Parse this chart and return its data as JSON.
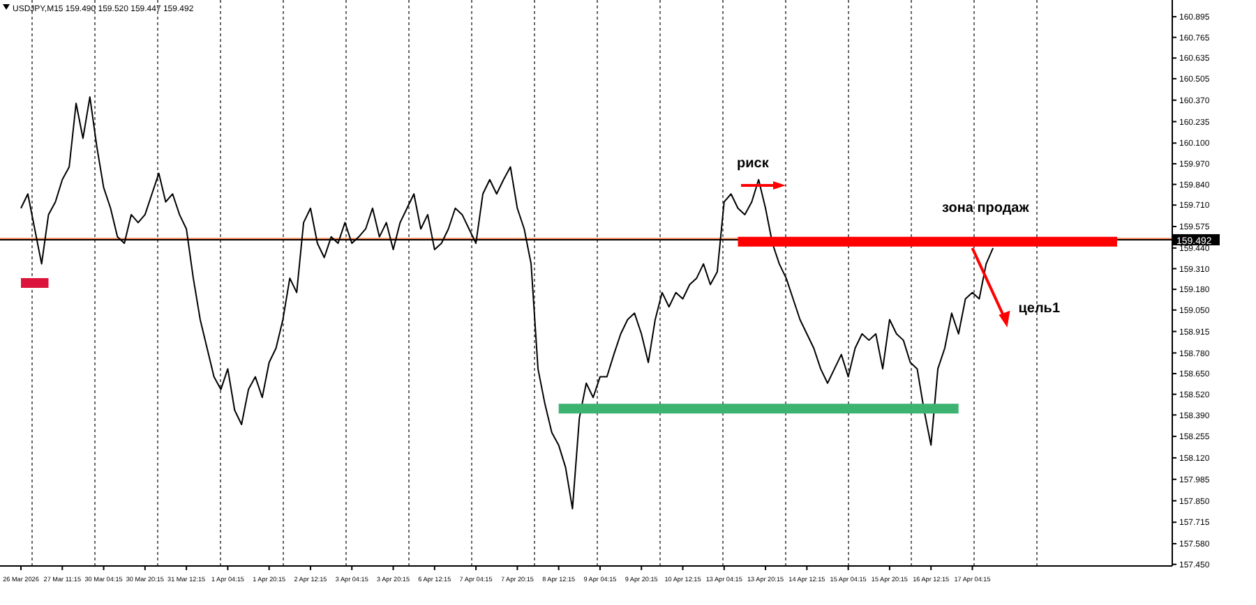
{
  "chart_data": {
    "type": "line",
    "title": "USDJPY,M15  159.490 159.520 159.447 159.492",
    "categories": [
      "26 Mar 2026",
      null,
      null,
      null,
      null,
      null,
      "27 Mar 11:15",
      null,
      null,
      null,
      null,
      null,
      "30 Mar 04:15",
      null,
      null,
      null,
      null,
      null,
      "30 Mar 20:15",
      null,
      null,
      null,
      null,
      null,
      "31 Mar 12:15",
      null,
      null,
      null,
      null,
      null,
      "1 Apr 04:15",
      null,
      null,
      null,
      null,
      null,
      "1 Apr 20:15",
      null,
      null,
      null,
      null,
      null,
      "2 Apr 12:15",
      null,
      null,
      null,
      null,
      null,
      "3 Apr 04:15",
      null,
      null,
      null,
      null,
      null,
      "3 Apr 20:15",
      null,
      null,
      null,
      null,
      null,
      "6 Apr 12:15",
      null,
      null,
      null,
      null,
      null,
      "7 Apr 04:15",
      null,
      null,
      null,
      null,
      null,
      "7 Apr 20:15",
      null,
      null,
      null,
      null,
      null,
      "8 Apr 12:15",
      null,
      null,
      null,
      null,
      null,
      "9 Apr 04:15",
      null,
      null,
      null,
      null,
      null,
      "9 Apr 20:15",
      null,
      null,
      null,
      null,
      null,
      "10 Apr 12:15",
      null,
      null,
      null,
      null,
      null,
      "13 Apr 04:15",
      null,
      null,
      null,
      null,
      null,
      "13 Apr 20:15",
      null,
      null,
      null,
      null,
      null,
      "14 Apr 12:15",
      null,
      null,
      null,
      null,
      null,
      "15 Apr 04:15",
      null,
      null,
      null,
      null,
      null,
      "15 Apr 20:15",
      null,
      null,
      null,
      null,
      null,
      "16 Apr 12:15",
      null,
      null,
      null,
      null,
      null,
      "17 Apr 04:15",
      null,
      null,
      null,
      null,
      null,
      null,
      null,
      null,
      null,
      null,
      null,
      null,
      null,
      null,
      null,
      null,
      null,
      null,
      null,
      null,
      null,
      null,
      null,
      null,
      null,
      null,
      null,
      null,
      null
    ],
    "ylim": [
      157.44,
      161.0
    ],
    "yticks": [
      160.895,
      160.765,
      160.635,
      160.505,
      {
        "value": 160.37,
        "label": "160.370"
      },
      160.235,
      {
        "value": 160.1,
        "label": "160.100"
      },
      {
        "value": 159.97,
        "label": "159.970"
      },
      {
        "value": 159.84,
        "label": "159.840"
      },
      {
        "value": 159.71,
        "label": "159.710"
      },
      159.575,
      {
        "value": 159.44,
        "label": "159.440"
      },
      {
        "value": 159.31,
        "label": "159.310"
      },
      {
        "value": 159.18,
        "label": "159.180"
      },
      {
        "value": 159.05,
        "label": "159.050"
      },
      158.915,
      {
        "value": 158.78,
        "label": "158.780"
      },
      {
        "value": 158.65,
        "label": "158.650"
      },
      {
        "value": 158.52,
        "label": "158.520"
      },
      {
        "value": 158.39,
        "label": "158.390"
      },
      158.255,
      {
        "value": 158.12,
        "label": "158.120"
      },
      157.985,
      {
        "value": 157.85,
        "label": "157.850"
      },
      157.715,
      {
        "value": 157.58,
        "label": "157.580"
      },
      {
        "value": 157.45,
        "label": "157.450"
      }
    ],
    "series": [
      {
        "color": "#000000",
        "values": [
          159.69,
          159.78,
          159.56,
          159.34,
          159.65,
          159.73,
          159.87,
          159.95,
          160.35,
          160.13,
          160.39,
          160.08,
          159.82,
          159.69,
          159.51,
          159.47,
          159.65,
          159.6,
          159.65,
          159.78,
          159.91,
          159.73,
          159.78,
          159.65,
          159.56,
          159.25,
          158.99,
          158.81,
          158.63,
          158.55,
          158.68,
          158.42,
          158.33,
          158.55,
          158.63,
          158.5,
          158.72,
          158.81,
          158.99,
          159.25,
          159.16,
          159.6,
          159.69,
          159.47,
          159.38,
          159.51,
          159.47,
          159.6,
          159.47,
          159.51,
          159.56,
          159.69,
          159.51,
          159.6,
          159.43,
          159.6,
          159.69,
          159.78,
          159.56,
          159.65,
          159.43,
          159.47,
          159.56,
          159.69,
          159.65,
          159.56,
          159.47,
          159.78,
          159.87,
          159.78,
          159.87,
          159.95,
          159.69,
          159.56,
          159.34,
          158.68,
          158.46,
          158.28,
          158.2,
          158.06,
          157.8,
          158.37,
          158.59,
          158.5,
          158.63,
          158.63,
          158.77,
          158.9,
          158.99,
          159.03,
          158.9,
          158.72,
          158.99,
          159.16,
          159.07,
          159.16,
          159.12,
          159.21,
          159.25,
          159.34,
          159.21,
          159.29,
          159.73,
          159.78,
          159.69,
          159.65,
          159.73,
          159.87,
          159.69,
          159.47,
          159.34,
          159.25,
          159.12,
          158.99,
          158.9,
          158.81,
          158.68,
          158.59,
          158.68,
          158.77,
          158.63,
          158.81,
          158.9,
          158.86,
          158.9,
          158.68,
          158.99,
          158.9,
          158.86,
          158.72,
          158.68,
          158.42,
          158.2,
          158.68,
          158.81,
          159.03,
          158.9,
          159.12,
          159.16,
          159.12,
          159.34,
          159.44,
          null,
          null,
          null,
          null,
          null,
          null,
          null,
          null,
          null,
          null,
          null,
          null,
          null,
          null,
          null,
          null,
          null,
          null,
          null,
          null,
          null,
          null,
          null,
          null,
          null,
          null
        ]
      },
      {
        "color": "#dc143c",
        "values": [
          159.22,
          159.22,
          159.22,
          159.22,
          159.22,
          null,
          null,
          null,
          null,
          null,
          null,
          null,
          null,
          null,
          null,
          null,
          null,
          null,
          null,
          null,
          null,
          null,
          null,
          null,
          null,
          null,
          null,
          null,
          null,
          null,
          null,
          null,
          null,
          null,
          null,
          null,
          null,
          null,
          null,
          null,
          null,
          null,
          null,
          null,
          null,
          null,
          null,
          null,
          null,
          null,
          null,
          null,
          null,
          null,
          null,
          null,
          null,
          null,
          null,
          null,
          null,
          null,
          null,
          null,
          null,
          null,
          null,
          null,
          null,
          null,
          null,
          null,
          null,
          null,
          null,
          null,
          null,
          null,
          null,
          null,
          null,
          null,
          null,
          null,
          null,
          null,
          null,
          null,
          null,
          null,
          null,
          null,
          null,
          null,
          null,
          null,
          null,
          null,
          null,
          null,
          null,
          null,
          null,
          null,
          null,
          null,
          null,
          null,
          null,
          null,
          null,
          null,
          null,
          null,
          null,
          null,
          null,
          null,
          null,
          null,
          null,
          null,
          null,
          null,
          null,
          null,
          null,
          null,
          null,
          null,
          null,
          null,
          null,
          null,
          null,
          null,
          null,
          null,
          null,
          null,
          null,
          null,
          null,
          null,
          null,
          null,
          null,
          null,
          null,
          null,
          null,
          null,
          null,
          null,
          null,
          null,
          null,
          null,
          null,
          null,
          null,
          null,
          null,
          null,
          null,
          null,
          null,
          null
        ]
      },
      {
        "color": "#3cb371",
        "values": [
          null,
          null,
          null,
          null,
          null,
          null,
          null,
          null,
          null,
          null,
          null,
          null,
          null,
          null,
          null,
          null,
          null,
          null,
          null,
          null,
          null,
          null,
          null,
          null,
          null,
          null,
          null,
          null,
          null,
          null,
          null,
          null,
          null,
          null,
          null,
          null,
          null,
          null,
          null,
          null,
          null,
          null,
          null,
          null,
          null,
          null,
          null,
          null,
          null,
          null,
          null,
          null,
          null,
          null,
          null,
          null,
          null,
          null,
          null,
          null,
          null,
          null,
          null,
          null,
          null,
          null,
          null,
          null,
          null,
          null,
          null,
          null,
          null,
          null,
          null,
          null,
          null,
          null,
          158.43,
          158.43,
          158.43,
          158.43,
          158.43,
          158.43,
          158.43,
          158.43,
          158.43,
          158.43,
          158.43,
          158.43,
          158.43,
          158.43,
          158.43,
          158.43,
          158.43,
          158.43,
          158.43,
          158.43,
          158.43,
          158.43,
          158.43,
          158.43,
          158.43,
          158.43,
          158.43,
          158.43,
          158.43,
          158.43,
          158.43,
          158.43,
          158.43,
          158.43,
          158.43,
          158.43,
          158.43,
          158.43,
          158.43,
          158.43,
          158.43,
          158.43,
          158.43,
          158.43,
          158.43,
          158.43,
          158.43,
          158.43,
          158.43,
          158.43,
          158.43,
          158.43,
          158.43,
          158.43,
          158.43,
          158.43,
          158.43,
          158.43,
          158.43,
          null,
          null,
          null,
          null,
          null,
          null,
          null,
          null,
          null,
          null,
          null,
          null,
          null,
          null,
          null,
          null,
          null,
          null,
          null,
          null,
          null,
          null,
          null,
          null,
          null,
          null,
          null,
          null,
          null,
          null,
          null
        ]
      },
      {
        "color": "#ff0000",
        "values": [
          null,
          null,
          null,
          null,
          null,
          null,
          null,
          null,
          null,
          null,
          null,
          null,
          null,
          null,
          null,
          null,
          null,
          null,
          null,
          null,
          null,
          null,
          null,
          null,
          null,
          null,
          null,
          null,
          null,
          null,
          null,
          null,
          null,
          null,
          null,
          null,
          null,
          null,
          null,
          null,
          null,
          null,
          null,
          null,
          null,
          null,
          null,
          null,
          null,
          null,
          null,
          null,
          null,
          null,
          null,
          null,
          null,
          null,
          null,
          null,
          null,
          null,
          null,
          null,
          null,
          null,
          null,
          null,
          null,
          null,
          null,
          null,
          null,
          null,
          null,
          null,
          null,
          null,
          null,
          null,
          null,
          null,
          null,
          null,
          null,
          null,
          null,
          null,
          null,
          null,
          null,
          null,
          null,
          null,
          null,
          null,
          null,
          null,
          null,
          null,
          null,
          null,
          null,
          null,
          159.48,
          159.48,
          159.48,
          159.48,
          159.48,
          159.48,
          159.48,
          159.48,
          159.48,
          159.48,
          159.48,
          159.48,
          159.48,
          159.48,
          159.48,
          159.48,
          159.48,
          159.48,
          159.48,
          159.48,
          159.48,
          159.48,
          159.48,
          159.48,
          159.48,
          159.48,
          159.48,
          159.48,
          159.48,
          159.48,
          159.48,
          159.48,
          159.48,
          159.48,
          159.48,
          159.48,
          159.48,
          159.48,
          159.48,
          159.48,
          159.48,
          159.48,
          159.48,
          159.48,
          159.48,
          159.48,
          159.48,
          159.48,
          159.48,
          159.48,
          159.48,
          159.48,
          159.48,
          159.48,
          159.48,
          159.48,
          null,
          null,
          null,
          null,
          null,
          null,
          null,
          null
        ]
      }
    ],
    "ref_lines": [
      {
        "axis": "y",
        "value": 159.5,
        "color": "#ff8c5a",
        "line_style": "solid"
      },
      {
        "axis": "y",
        "value": 159.492,
        "label": "159.492",
        "color": "#000000",
        "line_style": "solid"
      }
    ],
    "annotations": [
      "риск",
      "зона продаж",
      {
        "text": "цель1",
        "x": "17 Apr 04:15",
        "y": 159.44
      }
    ]
  }
}
